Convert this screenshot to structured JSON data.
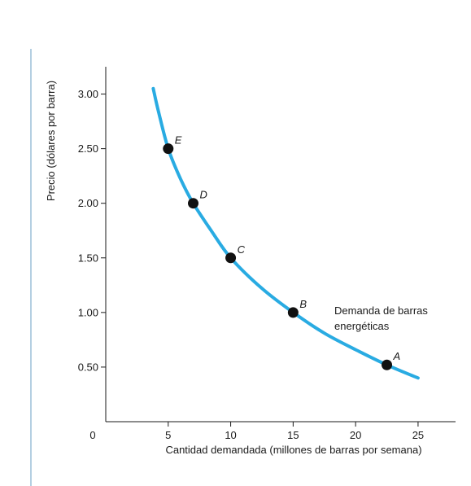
{
  "chart_data": {
    "type": "line",
    "xlabel": "Cantidad demandada (millones de barras por semana)",
    "ylabel": "Precio (dólares por barra)",
    "xlim": [
      0,
      28
    ],
    "ylim": [
      0,
      3.25
    ],
    "x_ticks": [
      {
        "value": 0,
        "label": "0"
      },
      {
        "value": 5,
        "label": "5"
      },
      {
        "value": 10,
        "label": "10"
      },
      {
        "value": 15,
        "label": "15"
      },
      {
        "value": 20,
        "label": "20"
      },
      {
        "value": 25,
        "label": "25"
      }
    ],
    "y_ticks": [
      {
        "value": 0.5,
        "label": "0.50"
      },
      {
        "value": 1.0,
        "label": "1.00"
      },
      {
        "value": 1.5,
        "label": "1.50"
      },
      {
        "value": 2.0,
        "label": "2.00"
      },
      {
        "value": 2.5,
        "label": "2.50"
      },
      {
        "value": 3.0,
        "label": "3.00"
      }
    ],
    "grid": false,
    "curve": {
      "color": "#29abe2",
      "points": [
        {
          "x": 3.8,
          "y": 3.05
        },
        {
          "x": 4.2,
          "y": 2.85
        },
        {
          "x": 5.0,
          "y": 2.5
        },
        {
          "x": 6.0,
          "y": 2.22
        },
        {
          "x": 7.0,
          "y": 2.0
        },
        {
          "x": 8.5,
          "y": 1.74
        },
        {
          "x": 10.0,
          "y": 1.5
        },
        {
          "x": 12.5,
          "y": 1.22
        },
        {
          "x": 15.0,
          "y": 1.0
        },
        {
          "x": 17.5,
          "y": 0.81
        },
        {
          "x": 20.0,
          "y": 0.66
        },
        {
          "x": 22.5,
          "y": 0.52
        },
        {
          "x": 25.0,
          "y": 0.4
        }
      ]
    },
    "labeled_points": [
      {
        "label": "A",
        "x": 22.5,
        "y": 0.52
      },
      {
        "label": "B",
        "x": 15.0,
        "y": 1.0
      },
      {
        "label": "C",
        "x": 10.0,
        "y": 1.5
      },
      {
        "label": "D",
        "x": 7.0,
        "y": 2.0
      },
      {
        "label": "E",
        "x": 5.0,
        "y": 2.5
      }
    ],
    "annotation": {
      "lines": [
        "Demanda de barras",
        "energéticas"
      ]
    }
  }
}
